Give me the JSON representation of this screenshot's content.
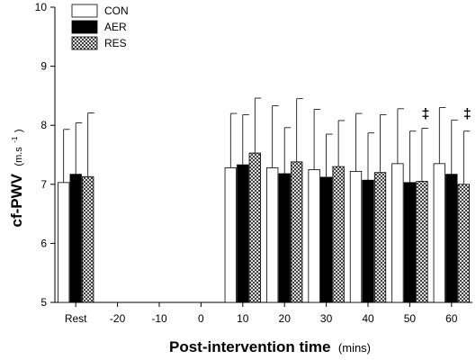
{
  "chart_data": {
    "type": "bar",
    "categories": [
      "Rest",
      "-20",
      "-10",
      "0",
      "10",
      "20",
      "30",
      "40",
      "50",
      "60"
    ],
    "series": [
      {
        "name": "CON",
        "fill": "#ffffff",
        "pattern": "none",
        "values": [
          7.03,
          null,
          null,
          null,
          7.28,
          7.28,
          7.25,
          7.22,
          7.35,
          7.35
        ],
        "errors": [
          0.9,
          null,
          null,
          null,
          0.92,
          1.05,
          1.02,
          0.98,
          0.93,
          0.95
        ]
      },
      {
        "name": "AER",
        "fill": "#000000",
        "pattern": "none",
        "values": [
          7.17,
          null,
          null,
          null,
          7.33,
          7.18,
          7.12,
          7.07,
          7.03,
          7.17
        ],
        "errors": [
          0.87,
          null,
          null,
          null,
          0.85,
          0.78,
          0.73,
          0.8,
          0.87,
          0.92
        ]
      },
      {
        "name": "RES",
        "fill": "#ffffff",
        "pattern": "crosshatch",
        "values": [
          7.13,
          null,
          null,
          null,
          7.53,
          7.38,
          7.3,
          7.2,
          7.05,
          7.0
        ],
        "errors": [
          1.08,
          null,
          null,
          null,
          0.93,
          1.07,
          0.78,
          0.98,
          0.9,
          0.9
        ]
      }
    ],
    "ylim": [
      5,
      10
    ],
    "yticks": [
      "5",
      "6",
      "7",
      "8",
      "9",
      "10"
    ],
    "ylabel_main": "cf-PWV",
    "ylabel_unit": "(m.s",
    "ylabel_unit_sup": "-1",
    "ylabel_unit_close": ")",
    "xlabel_main": "Post-intervention time",
    "xlabel_unit": "(mins)",
    "annotations": [
      {
        "category": "50",
        "text": "‡",
        "y": 8.12
      },
      {
        "category": "60",
        "text": "‡",
        "y": 8.12
      }
    ],
    "legend_position": "top-left",
    "grid": false
  }
}
